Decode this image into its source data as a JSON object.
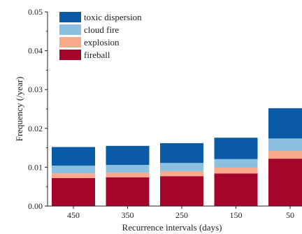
{
  "chart_data": {
    "type": "bar",
    "stacked": true,
    "categories": [
      "450",
      "350",
      "250",
      "150",
      "50"
    ],
    "series": [
      {
        "name": "fireball",
        "color": "#a6052b",
        "values": [
          0.0072,
          0.0074,
          0.0077,
          0.0084,
          0.0122
        ]
      },
      {
        "name": "explosion",
        "color": "#f9a98c",
        "values": [
          0.0012,
          0.0012,
          0.0013,
          0.0015,
          0.002
        ]
      },
      {
        "name": "cloud fire",
        "color": "#8cc0e0",
        "values": [
          0.002,
          0.002,
          0.0021,
          0.0022,
          0.0032
        ]
      },
      {
        "name": "toxic dispersion",
        "color": "#0a5aa6",
        "values": [
          0.0048,
          0.0049,
          0.0051,
          0.0055,
          0.0078
        ]
      }
    ],
    "legend_order": [
      "toxic dispersion",
      "cloud fire",
      "explosion",
      "fireball"
    ],
    "xlabel": "Recurrence intervals (days)",
    "ylabel": "Frequency (/year)",
    "ylim": [
      0,
      0.05
    ],
    "yticks": [
      "0.00",
      "0.01",
      "0.02",
      "0.03",
      "0.04",
      "0.05"
    ],
    "legend_position": "top-left",
    "grid": false
  }
}
